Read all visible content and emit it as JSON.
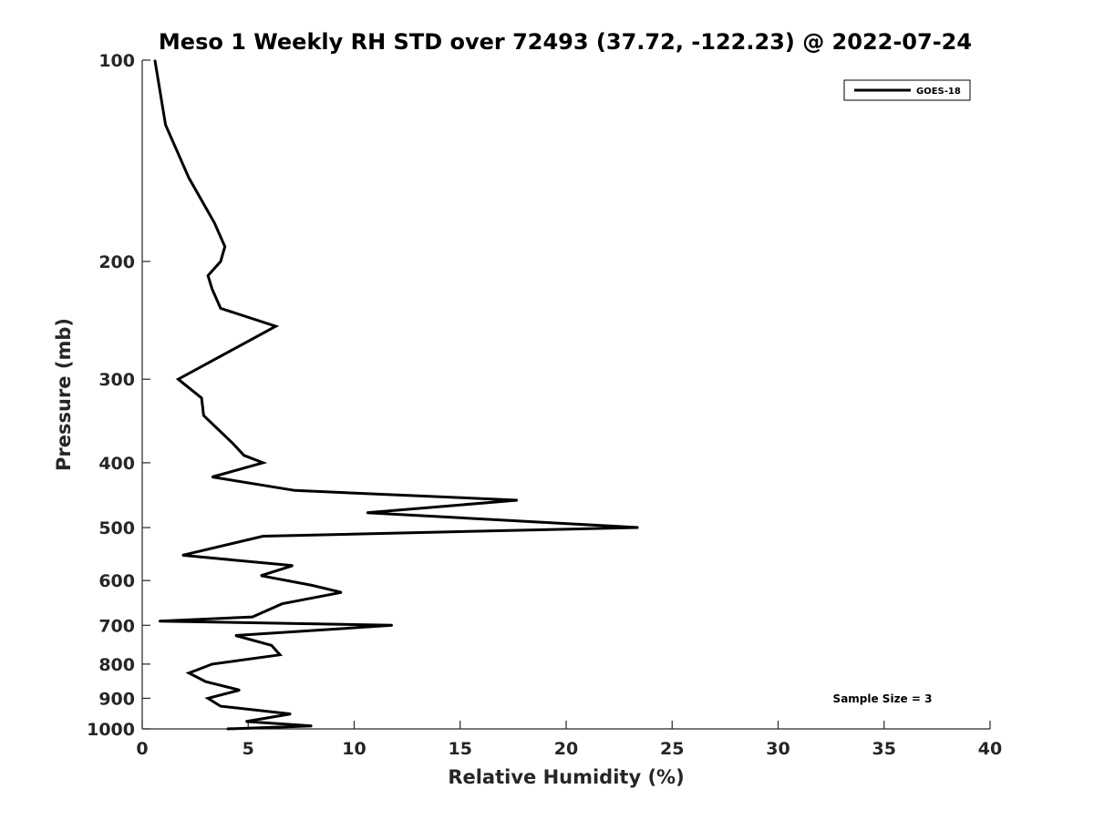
{
  "chart_data": {
    "type": "line",
    "title": "Meso 1 Weekly RH STD over 72493 (37.72, -122.23) @ 2022-07-24",
    "xlabel": "Relative Humidity (%)",
    "ylabel": "Pressure (mb)",
    "xlim": [
      0,
      40
    ],
    "ylim": [
      100,
      1000
    ],
    "yscale": "log",
    "y_reversed": true,
    "grid": false,
    "legend_position": "top-right",
    "line_color": "#000000",
    "x_ticks": [
      0,
      5,
      10,
      15,
      20,
      25,
      30,
      35,
      40
    ],
    "x_tick_labels": [
      "0",
      "5",
      "10",
      "15",
      "20",
      "25",
      "30",
      "35",
      "40"
    ],
    "y_ticks": [
      100,
      200,
      300,
      400,
      500,
      600,
      700,
      800,
      900,
      1000
    ],
    "y_tick_labels": [
      "100",
      "200",
      "300",
      "400",
      "500",
      "600",
      "700",
      "800",
      "900",
      "1000"
    ],
    "series": [
      {
        "name": "GOES-18",
        "points": [
          [
            0.6,
            100
          ],
          [
            1.1,
            125
          ],
          [
            2.2,
            150
          ],
          [
            3.4,
            175
          ],
          [
            3.9,
            190
          ],
          [
            3.7,
            200
          ],
          [
            3.1,
            210
          ],
          [
            3.3,
            220
          ],
          [
            3.7,
            235
          ],
          [
            6.3,
            250
          ],
          [
            1.7,
            300
          ],
          [
            2.8,
            320
          ],
          [
            2.9,
            340
          ],
          [
            4.3,
            375
          ],
          [
            4.8,
            390
          ],
          [
            5.7,
            400
          ],
          [
            3.3,
            420
          ],
          [
            7.2,
            440
          ],
          [
            17.7,
            455
          ],
          [
            10.6,
            475
          ],
          [
            23.4,
            500
          ],
          [
            5.7,
            515
          ],
          [
            1.9,
            550
          ],
          [
            7.1,
            570
          ],
          [
            5.6,
            590
          ],
          [
            8.0,
            610
          ],
          [
            9.4,
            625
          ],
          [
            6.6,
            650
          ],
          [
            5.2,
            680
          ],
          [
            0.8,
            690
          ],
          [
            11.8,
            700
          ],
          [
            4.4,
            725
          ],
          [
            6.1,
            750
          ],
          [
            6.5,
            775
          ],
          [
            3.3,
            800
          ],
          [
            2.2,
            825
          ],
          [
            3.0,
            850
          ],
          [
            4.6,
            875
          ],
          [
            3.1,
            900
          ],
          [
            3.7,
            925
          ],
          [
            7.0,
            950
          ],
          [
            4.9,
            975
          ],
          [
            8.0,
            990
          ],
          [
            4.0,
            1000
          ]
        ]
      }
    ],
    "legend_entries": [
      "GOES-18"
    ],
    "annotations": [
      "Sample Size = 3"
    ]
  }
}
